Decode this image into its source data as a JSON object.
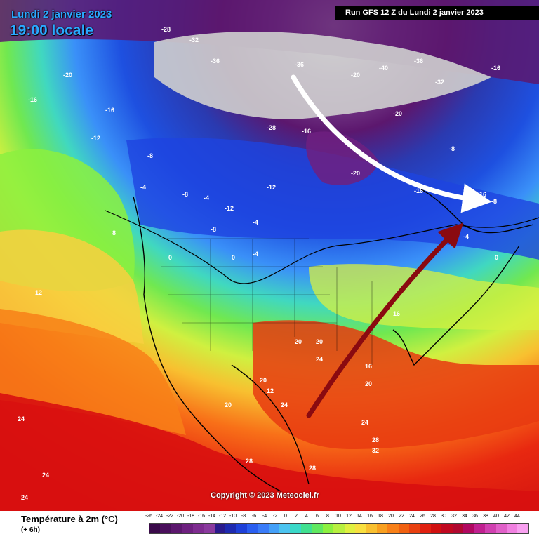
{
  "header": {
    "date": "Lundi 2 janvier 2023",
    "time": "19:00 locale",
    "run": "Run GFS 12 Z du Lundi 2 janvier 2023"
  },
  "copyright": "Copyright © 2023 Meteociel.fr",
  "legend": {
    "title": "Température à 2m (°C)",
    "subtitle": "(+ 6h)",
    "scale": [
      "-26",
      "-24",
      "-22",
      "-20",
      "-18",
      "-16",
      "-14",
      "-12",
      "-10",
      "-8",
      "-6",
      "-4",
      "-2",
      "0",
      "2",
      "4",
      "6",
      "8",
      "10",
      "12",
      "14",
      "16",
      "18",
      "20",
      "22",
      "24",
      "26",
      "28",
      "30",
      "32",
      "34",
      "36",
      "38",
      "40",
      "42",
      "44"
    ],
    "colors": [
      "#3a0a4a",
      "#4a0f5c",
      "#5c176e",
      "#6e2080",
      "#7e2c90",
      "#8a3a9e",
      "#2a1a8c",
      "#1e2ab0",
      "#1e40d8",
      "#2a5ef0",
      "#3a7cf8",
      "#44a0f8",
      "#4cc4f0",
      "#3ad8c8",
      "#40e090",
      "#60e860",
      "#8cf040",
      "#b8f040",
      "#e0f040",
      "#f8e040",
      "#f8c030",
      "#f8a020",
      "#f88018",
      "#f06010",
      "#e84010",
      "#e02010",
      "#d01010",
      "#c00820",
      "#b00830",
      "#b00860",
      "#c02090",
      "#d040b0",
      "#e060c8",
      "#f080e0",
      "#f8a0f0"
    ]
  },
  "map_labels": [
    {
      "t": "-28"
    },
    {
      "t": "-32"
    },
    {
      "t": "-36"
    },
    {
      "t": "-36"
    },
    {
      "t": "-40"
    },
    {
      "t": "-36"
    },
    {
      "t": "-32"
    },
    {
      "t": "-28"
    },
    {
      "t": "-20"
    },
    {
      "t": "-16"
    },
    {
      "t": "-12"
    },
    {
      "t": "-20"
    },
    {
      "t": "-16"
    },
    {
      "t": "-16"
    },
    {
      "t": "-8"
    },
    {
      "t": "-4"
    },
    {
      "t": "-8"
    },
    {
      "t": "-12"
    },
    {
      "t": "-4"
    },
    {
      "t": "0"
    },
    {
      "t": "-12"
    },
    {
      "t": "-8"
    },
    {
      "t": "-20"
    },
    {
      "t": "-16"
    },
    {
      "t": "-8"
    },
    {
      "t": "-4"
    },
    {
      "t": "0"
    },
    {
      "t": "8"
    },
    {
      "t": "12"
    },
    {
      "t": "12"
    },
    {
      "t": "16"
    },
    {
      "t": "20"
    },
    {
      "t": "20"
    },
    {
      "t": "24"
    },
    {
      "t": "20"
    },
    {
      "t": "20"
    },
    {
      "t": "16"
    },
    {
      "t": "24"
    },
    {
      "t": "24"
    },
    {
      "t": "28"
    },
    {
      "t": "32"
    },
    {
      "t": "28"
    },
    {
      "t": "24"
    },
    {
      "t": "24"
    },
    {
      "t": "28"
    },
    {
      "t": "24"
    },
    {
      "t": "20"
    },
    {
      "t": "-16"
    },
    {
      "t": "-8"
    },
    {
      "t": "-4"
    },
    {
      "t": "0"
    },
    {
      "t": "-4"
    },
    {
      "t": "-16"
    },
    {
      "t": "-20"
    }
  ]
}
